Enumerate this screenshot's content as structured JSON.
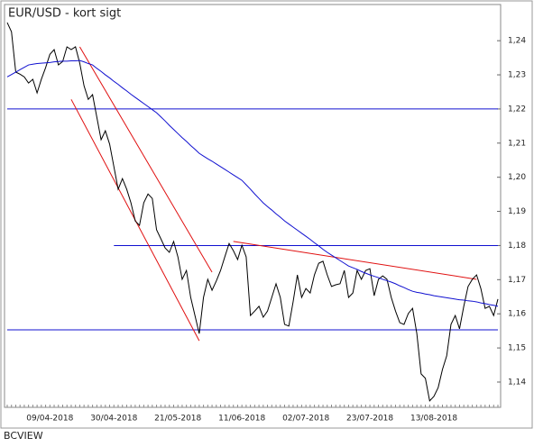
{
  "chart_data": {
    "type": "line",
    "title": "EUR/USD - kort sigt",
    "footer": "BCVIEW",
    "categories": [
      null,
      null,
      null,
      null,
      null,
      null,
      null,
      null,
      null,
      null,
      "09/04-2018",
      null,
      null,
      null,
      null,
      null,
      null,
      null,
      null,
      null,
      null,
      null,
      null,
      null,
      null,
      "30/04-2018",
      null,
      null,
      null,
      null,
      null,
      null,
      null,
      null,
      null,
      null,
      null,
      null,
      null,
      null,
      "21/05-2018",
      null,
      null,
      null,
      null,
      null,
      null,
      null,
      null,
      null,
      null,
      null,
      null,
      null,
      null,
      "11/06-2018",
      null,
      null,
      null,
      null,
      null,
      null,
      null,
      null,
      null,
      null,
      null,
      null,
      null,
      null,
      "02/07-2018",
      null,
      null,
      null,
      null,
      null,
      null,
      null,
      null,
      null,
      null,
      null,
      null,
      null,
      null,
      "23/07-2018",
      null,
      null,
      null,
      null,
      null,
      null,
      null,
      null,
      null,
      null,
      null,
      null,
      null,
      null,
      "13/08-2018",
      null,
      null,
      null,
      null,
      null,
      null,
      null,
      null,
      null,
      null,
      null,
      null,
      null,
      null,
      null
    ],
    "series": [
      {
        "color": "#000000",
        "values": [
          1.2453,
          1.2426,
          1.2308,
          1.2302,
          1.2294,
          1.2276,
          1.2287,
          1.2247,
          1.2287,
          1.2321,
          1.236,
          1.2374,
          1.2329,
          1.2339,
          1.2382,
          1.2374,
          1.2382,
          1.2334,
          1.2268,
          1.2228,
          1.2242,
          1.2176,
          1.211,
          1.2136,
          1.2097,
          1.2031,
          1.1965,
          1.1996,
          1.1965,
          1.1925,
          1.1872,
          1.1859,
          1.1925,
          1.1951,
          1.1938,
          1.1846,
          1.182,
          1.1793,
          1.178,
          1.1812,
          1.1767,
          1.1701,
          1.1727,
          1.1648,
          1.1595,
          1.1542,
          1.1648,
          1.1701,
          1.1669,
          1.1696,
          1.1727,
          1.1767,
          1.1806,
          1.1785,
          1.1759,
          1.1801,
          1.1767,
          1.1595,
          1.1608,
          1.1622,
          1.159,
          1.1608,
          1.1648,
          1.1688,
          1.1648,
          1.1569,
          1.1564,
          1.1635,
          1.1714,
          1.1648,
          1.1674,
          1.1661,
          1.1714,
          1.1748,
          1.1754,
          1.1714,
          1.168,
          1.1685,
          1.1688,
          1.1727,
          1.1648,
          1.1661,
          1.1727,
          1.1701,
          1.1727,
          1.1732,
          1.1653,
          1.1701,
          1.1711,
          1.1701,
          1.1648,
          1.1608,
          1.1574,
          1.1569,
          1.1601,
          1.1616,
          1.1542,
          1.1424,
          1.1411,
          1.1345,
          1.1358,
          1.1384,
          1.1437,
          1.1477,
          1.1569,
          1.1595,
          1.1556,
          1.1622,
          1.168,
          1.1701,
          1.1714,
          1.1674,
          1.1616,
          1.1622,
          1.1595,
          1.1643
        ]
      },
      {
        "color": "#1010d0",
        "values": [
          1.2294,
          1.2301,
          1.2308,
          1.2315,
          1.2322,
          1.2329,
          1.2331,
          1.2333,
          1.2334,
          1.2335,
          1.2336,
          1.2338,
          1.2339,
          1.234,
          1.234,
          1.2341,
          1.2341,
          1.2342,
          1.2338,
          1.2333,
          1.2329,
          1.2319,
          1.231,
          1.23,
          1.2291,
          1.2281,
          1.2272,
          1.2262,
          1.2253,
          1.2243,
          1.2234,
          1.2225,
          1.2216,
          1.2207,
          1.2198,
          1.2189,
          1.2177,
          1.2165,
          1.2152,
          1.214,
          1.2128,
          1.2116,
          1.2105,
          1.2093,
          1.2082,
          1.207,
          1.2062,
          1.2054,
          1.2047,
          1.2039,
          1.2031,
          1.2023,
          1.2015,
          1.2007,
          1.1999,
          1.1991,
          1.1978,
          1.1965,
          1.1951,
          1.1938,
          1.1925,
          1.1914,
          1.1904,
          1.1893,
          1.1883,
          1.1872,
          1.1863,
          1.1854,
          1.1845,
          1.1836,
          1.1827,
          1.1818,
          1.1808,
          1.1799,
          1.1789,
          1.178,
          1.1772,
          1.1764,
          1.1756,
          1.1748,
          1.174,
          1.1735,
          1.173,
          1.1724,
          1.1719,
          1.1714,
          1.171,
          1.1706,
          1.1701,
          1.1697,
          1.1693,
          1.1688,
          1.1682,
          1.1677,
          1.1671,
          1.1666,
          1.1663,
          1.1661,
          1.1658,
          1.1656,
          1.1653,
          1.1651,
          1.1649,
          1.1647,
          1.1645,
          1.1643,
          1.1641,
          1.164,
          1.1638,
          1.1637,
          1.1635,
          1.1632,
          1.163,
          1.1627,
          1.1625,
          1.1622
        ]
      }
    ],
    "reference_lines": [
      {
        "color": "#1010d0",
        "x": [
          0,
          115
        ],
        "y": [
          1.22,
          1.22
        ]
      },
      {
        "color": "#1010d0",
        "x": [
          25,
          115
        ],
        "y": [
          1.18,
          1.18
        ]
      },
      {
        "color": "#1010d0",
        "x": [
          0,
          115
        ],
        "y": [
          1.1553,
          1.1553
        ]
      },
      {
        "color": "#e01010",
        "x": [
          17,
          48
        ],
        "y": [
          1.2382,
          1.1722
        ]
      },
      {
        "color": "#e01010",
        "x": [
          15,
          45
        ],
        "y": [
          1.2228,
          1.1521
        ]
      },
      {
        "color": "#e01010",
        "x": [
          53,
          110
        ],
        "y": [
          1.1812,
          1.1701
        ]
      }
    ],
    "ylim": [
      1.1326,
      1.2506
    ],
    "yticks": [
      {
        "value": 1.14,
        "label": "1,14"
      },
      {
        "value": 1.15,
        "label": "1,15"
      },
      {
        "value": 1.16,
        "label": "1,16"
      },
      {
        "value": 1.17,
        "label": "1,17"
      },
      {
        "value": 1.18,
        "label": "1,18"
      },
      {
        "value": 1.19,
        "label": "1,19"
      },
      {
        "value": 1.2,
        "label": "1,20"
      },
      {
        "value": 1.21,
        "label": "1,21"
      },
      {
        "value": 1.22,
        "label": "1,22"
      },
      {
        "value": 1.23,
        "label": "1,23"
      },
      {
        "value": 1.24,
        "label": "1,24"
      }
    ],
    "title_color": "#e01010"
  }
}
